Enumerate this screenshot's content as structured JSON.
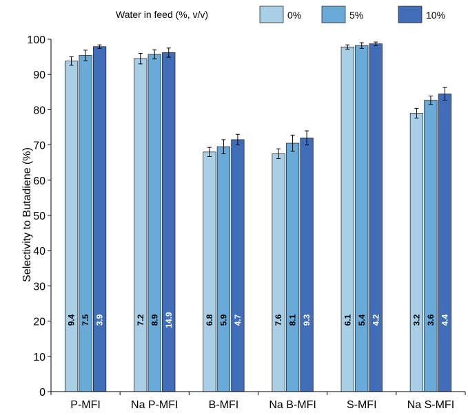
{
  "chart_data": {
    "type": "bar",
    "title": "",
    "xlabel": "",
    "ylabel": "Selectivity to Butadiene (%)",
    "ylim": [
      0,
      100
    ],
    "yticks": [
      0,
      10,
      20,
      30,
      40,
      50,
      60,
      70,
      80,
      90,
      100
    ],
    "grid": false,
    "legend": {
      "title": "Water in feed (%, v/v)",
      "placement": "top"
    },
    "categories": [
      "P-MFI",
      "Na P-MFI",
      "B-MFI",
      "Na B-MFI",
      "S-MFI",
      "Na S-MFI"
    ],
    "series": [
      {
        "name": "0%",
        "color": "#a8cfe6",
        "values": [
          93.8,
          94.5,
          68.0,
          67.5,
          97.8,
          79.0
        ],
        "errors": [
          1.2,
          1.5,
          1.3,
          1.4,
          0.6,
          1.4
        ],
        "labels": [
          "9.4",
          "7.2",
          "6.8",
          "7.6",
          "6.1",
          "3.2"
        ],
        "label_color": "#000000"
      },
      {
        "name": "5%",
        "color": "#6aaad8",
        "values": [
          95.4,
          95.7,
          69.5,
          70.5,
          98.2,
          82.7
        ],
        "errors": [
          1.5,
          1.3,
          2.0,
          2.3,
          0.8,
          1.2
        ],
        "labels": [
          "7.5",
          "8.9",
          "5.9",
          "8.1",
          "5.4",
          "3.6"
        ],
        "label_color": "#000000"
      },
      {
        "name": "10%",
        "color": "#3f6db8",
        "values": [
          97.9,
          96.2,
          71.5,
          72.0,
          98.7,
          84.5
        ],
        "errors": [
          0.5,
          1.3,
          1.5,
          2.0,
          0.5,
          1.8
        ],
        "labels": [
          "3.9",
          "14.9",
          "4.7",
          "9.3",
          "4.2",
          "4.4"
        ],
        "label_color": "#ffffff"
      }
    ]
  }
}
